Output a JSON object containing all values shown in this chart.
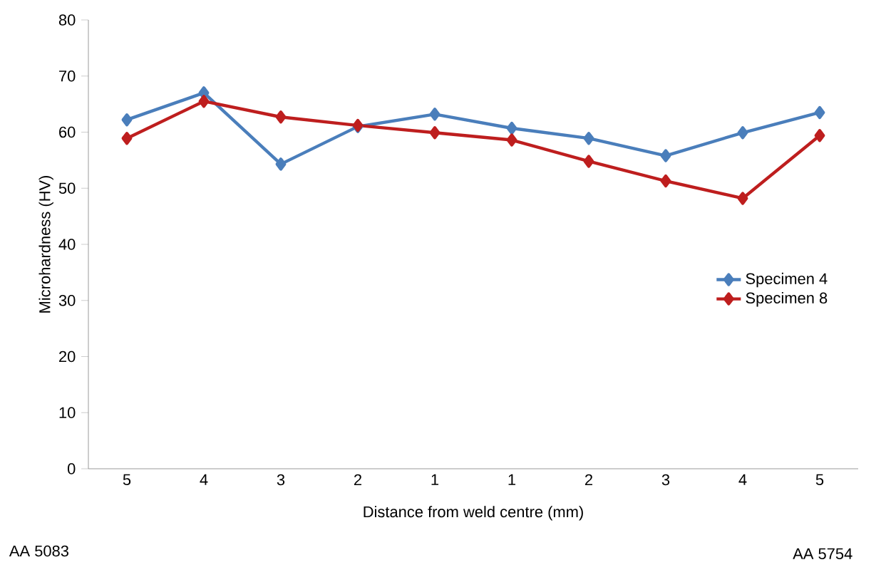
{
  "chart_data": {
    "type": "line",
    "xlabel": "Distance from weld centre (mm)",
    "ylabel": "Microhardness (HV)",
    "categories": [
      "5",
      "4",
      "3",
      "2",
      "1",
      "1",
      "2",
      "3",
      "4",
      "5"
    ],
    "series": [
      {
        "name": "Specimen 4",
        "color": "#4a7ebb",
        "values": [
          62.2,
          67,
          54.3,
          61,
          63.2,
          60.7,
          58.9,
          55.8,
          59.9,
          63.5
        ]
      },
      {
        "name": "Specimen 8",
        "color": "#be1e1e",
        "values": [
          58.9,
          65.5,
          62.7,
          61.2,
          59.9,
          58.6,
          54.8,
          51.3,
          48.2,
          59.4
        ]
      }
    ],
    "ylim": [
      0,
      80
    ],
    "yticks": [
      0,
      10,
      20,
      30,
      40,
      50,
      60,
      70,
      80
    ],
    "annotations": [
      "AA 5083",
      "AA 5754"
    ],
    "legend": "right",
    "marker": "diamond",
    "line_style": "solid",
    "grid": false
  }
}
